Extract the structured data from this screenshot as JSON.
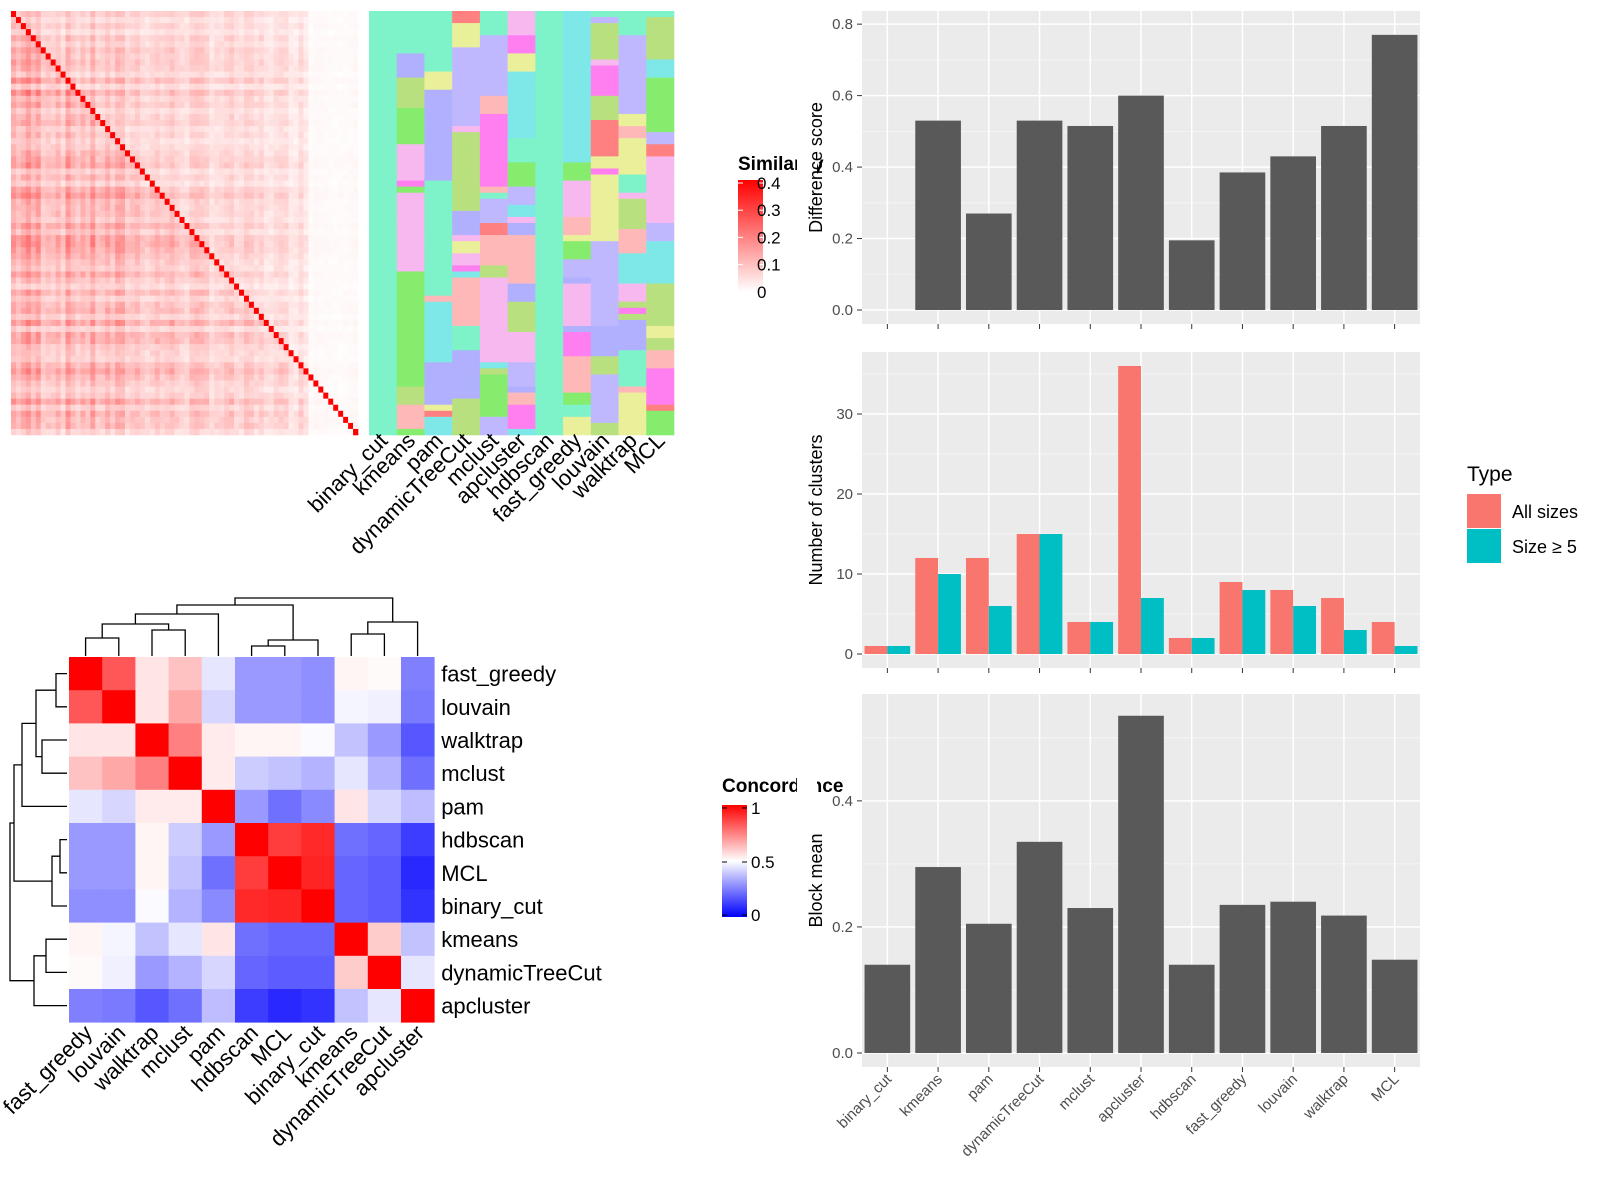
{
  "top_left_heatmap": {
    "legend_title": "Similarity",
    "legend_ticks": [
      "0.4",
      "0.3",
      "0.2",
      "0.1",
      "0"
    ],
    "column_labels": [
      "binary_cut",
      "kmeans",
      "pam",
      "dynamicTreeCut",
      "mclust",
      "apcluster",
      "hdbscan",
      "fast_greedy",
      "louvain",
      "walktrap",
      "MCL"
    ],
    "colors": {
      "high": "#ff0000",
      "low": "#ffffff"
    },
    "cluster_palette": [
      "#7ef2c8",
      "#f7b8ef",
      "#7ee8e8",
      "#c0b8ff",
      "#ff7ef0",
      "#86ec6e",
      "#ffb8b8",
      "#ff8080",
      "#b0b0ff",
      "#eaf09a",
      "#b8e07e"
    ]
  },
  "bottom_left_heatmap": {
    "legend_title": "Concordance",
    "legend_ticks": [
      "1",
      "0.5",
      "0"
    ],
    "labels": [
      "fast_greedy",
      "louvain",
      "walktrap",
      "mclust",
      "pam",
      "hdbscan",
      "MCL",
      "binary_cut",
      "kmeans",
      "dynamicTreeCut",
      "apcluster"
    ],
    "matrix": [
      [
        1.0,
        0.83,
        0.55,
        0.62,
        0.45,
        0.3,
        0.3,
        0.28,
        0.52,
        0.51,
        0.25
      ],
      [
        0.83,
        1.0,
        0.55,
        0.67,
        0.42,
        0.3,
        0.3,
        0.28,
        0.48,
        0.47,
        0.24
      ],
      [
        0.55,
        0.55,
        1.0,
        0.75,
        0.54,
        0.52,
        0.52,
        0.49,
        0.38,
        0.3,
        0.17
      ],
      [
        0.62,
        0.67,
        0.75,
        1.0,
        0.54,
        0.4,
        0.38,
        0.35,
        0.45,
        0.35,
        0.22
      ],
      [
        0.45,
        0.42,
        0.54,
        0.54,
        1.0,
        0.3,
        0.22,
        0.27,
        0.55,
        0.42,
        0.37
      ],
      [
        0.3,
        0.3,
        0.52,
        0.4,
        0.3,
        1.0,
        0.88,
        0.92,
        0.22,
        0.2,
        0.12
      ],
      [
        0.3,
        0.3,
        0.52,
        0.38,
        0.22,
        0.88,
        1.0,
        0.93,
        0.2,
        0.18,
        0.08
      ],
      [
        0.28,
        0.28,
        0.49,
        0.35,
        0.27,
        0.92,
        0.93,
        1.0,
        0.2,
        0.18,
        0.1
      ],
      [
        0.52,
        0.48,
        0.38,
        0.45,
        0.55,
        0.22,
        0.2,
        0.2,
        1.0,
        0.6,
        0.38
      ],
      [
        0.51,
        0.47,
        0.3,
        0.35,
        0.42,
        0.2,
        0.18,
        0.18,
        0.6,
        1.0,
        0.45
      ],
      [
        0.25,
        0.24,
        0.17,
        0.22,
        0.37,
        0.12,
        0.08,
        0.1,
        0.38,
        0.45,
        1.0
      ]
    ],
    "colors": {
      "low": "#0000ff",
      "mid": "#ffffff",
      "high": "#ff0000"
    }
  },
  "chart_data": [
    {
      "type": "bar",
      "categories": [
        "binary_cut",
        "kmeans",
        "pam",
        "dynamicTreeCut",
        "mclust",
        "apcluster",
        "hdbscan",
        "fast_greedy",
        "louvain",
        "walktrap",
        "MCL"
      ],
      "values": [
        0.0,
        0.53,
        0.27,
        0.53,
        0.515,
        0.6,
        0.195,
        0.385,
        0.43,
        0.515,
        0.77
      ],
      "ylabel": "Difference score",
      "ylim": [
        0,
        0.82
      ],
      "yticks": [
        "0.0",
        "0.2",
        "0.4",
        "0.6",
        "0.8"
      ],
      "grid": true,
      "bar_color": "#595959"
    },
    {
      "type": "bar",
      "categories": [
        "binary_cut",
        "kmeans",
        "pam",
        "dynamicTreeCut",
        "mclust",
        "apcluster",
        "hdbscan",
        "fast_greedy",
        "louvain",
        "walktrap",
        "MCL"
      ],
      "series": [
        {
          "name": "All sizes",
          "values": [
            1,
            12,
            12,
            15,
            4,
            36,
            2,
            9,
            8,
            7,
            4
          ],
          "color": "#f8766d"
        },
        {
          "name": "Size ≥ 5",
          "values": [
            1,
            10,
            6,
            15,
            4,
            7,
            2,
            8,
            6,
            3,
            1
          ],
          "color": "#00bfc4"
        }
      ],
      "ylabel": "Number of clusters",
      "ylim": [
        0,
        37
      ],
      "yticks": [
        "0",
        "10",
        "20",
        "30"
      ],
      "legend_title": "Type",
      "legend_position": "right",
      "grid": true
    },
    {
      "type": "bar",
      "categories": [
        "binary_cut",
        "kmeans",
        "pam",
        "dynamicTreeCut",
        "mclust",
        "apcluster",
        "hdbscan",
        "fast_greedy",
        "louvain",
        "walktrap",
        "MCL"
      ],
      "values": [
        0.14,
        0.295,
        0.205,
        0.335,
        0.23,
        0.535,
        0.14,
        0.235,
        0.24,
        0.218,
        0.148
      ],
      "ylabel": "Block mean",
      "ylim": [
        0,
        0.56
      ],
      "yticks": [
        "0.0",
        "0.2",
        "0.4"
      ],
      "grid": true,
      "bar_color": "#595959"
    }
  ]
}
